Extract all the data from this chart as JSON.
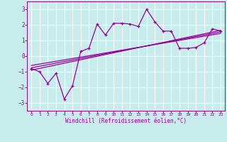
{
  "xlabel": "Windchill (Refroidissement éolien,°C)",
  "bg_color": "#c8ecec",
  "grid_color": "#ffffff",
  "line_color": "#990099",
  "xlim": [
    -0.5,
    23.5
  ],
  "ylim": [
    -3.5,
    3.5
  ],
  "yticks": [
    -3,
    -2,
    -1,
    0,
    1,
    2,
    3
  ],
  "xticks": [
    0,
    1,
    2,
    3,
    4,
    5,
    6,
    7,
    8,
    9,
    10,
    11,
    12,
    13,
    14,
    15,
    16,
    17,
    18,
    19,
    20,
    21,
    22,
    23
  ],
  "data_x": [
    0,
    1,
    2,
    3,
    4,
    5,
    6,
    7,
    8,
    9,
    10,
    11,
    12,
    13,
    14,
    15,
    16,
    17,
    18,
    19,
    20,
    21,
    22,
    23
  ],
  "data_y": [
    -0.8,
    -1.0,
    -1.75,
    -1.1,
    -2.75,
    -1.9,
    0.3,
    0.5,
    2.05,
    1.35,
    2.1,
    2.1,
    2.05,
    1.9,
    3.0,
    2.2,
    1.6,
    1.6,
    0.5,
    0.5,
    0.55,
    0.85,
    1.75,
    1.6
  ],
  "line1_x": [
    0,
    23
  ],
  "line1_y": [
    -0.9,
    1.65
  ],
  "line2_x": [
    0,
    23
  ],
  "line2_y": [
    -0.75,
    1.55
  ],
  "line3_x": [
    0,
    23
  ],
  "line3_y": [
    -0.6,
    1.45
  ]
}
